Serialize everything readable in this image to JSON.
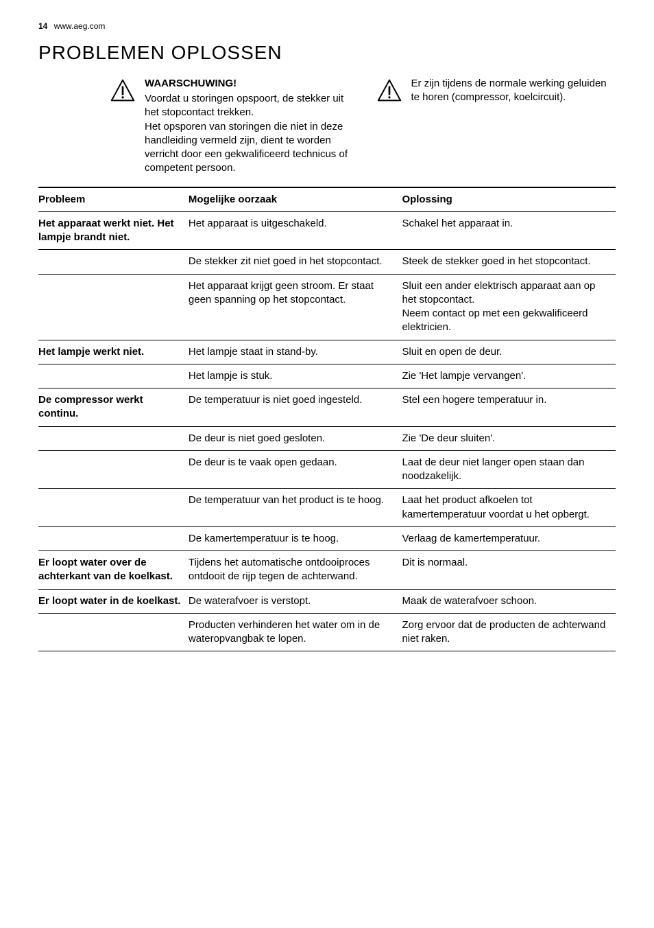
{
  "header": {
    "page_number": "14",
    "site": "www.aeg.com"
  },
  "section_title": "PROBLEMEN OPLOSSEN",
  "warning": {
    "heading": "WAARSCHUWING!",
    "body": "Voordat u storingen opspoort, de stekker uit het stopcontact trekken.\nHet opsporen van storingen die niet in deze handleiding vermeld zijn, dient te worden verricht door een gekwalificeerd technicus of competent persoon."
  },
  "note": {
    "body": "Er zijn tijdens de normale werking geluiden te horen (compressor, koelcircuit)."
  },
  "table": {
    "columns": [
      "Probleem",
      "Mogelijke oorzaak",
      "Oplossing"
    ],
    "rows": [
      {
        "problem": "Het apparaat werkt niet. Het lampje brandt niet.",
        "cause": "Het apparaat is uitgeschakeld.",
        "solution": "Schakel het apparaat in."
      },
      {
        "problem": "",
        "cause": "De stekker zit niet goed in het stopcontact.",
        "solution": "Steek de stekker goed in het stopcontact."
      },
      {
        "problem": "",
        "cause": "Het apparaat krijgt geen stroom. Er staat geen spanning op het stopcontact.",
        "solution": "Sluit een ander elektrisch apparaat aan op het stopcontact.\nNeem contact op met een gekwalificeerd elektricien."
      },
      {
        "problem": "Het lampje werkt niet.",
        "cause": "Het lampje staat in stand-by.",
        "solution": "Sluit en open de deur."
      },
      {
        "problem": "",
        "cause": "Het lampje is stuk.",
        "solution": "Zie 'Het lampje vervangen'."
      },
      {
        "problem": "De compressor werkt continu.",
        "cause": "De temperatuur is niet goed ingesteld.",
        "solution": "Stel een hogere temperatuur in."
      },
      {
        "problem": "",
        "cause": "De deur is niet goed gesloten.",
        "solution": "Zie 'De deur sluiten'."
      },
      {
        "problem": "",
        "cause": "De deur is te vaak open gedaan.",
        "solution": "Laat de deur niet langer open staan dan noodzakelijk."
      },
      {
        "problem": "",
        "cause": "De temperatuur van het product is te hoog.",
        "solution": "Laat het product afkoelen tot kamertemperatuur voordat u het opbergt."
      },
      {
        "problem": "",
        "cause": "De kamertemperatuur is te hoog.",
        "solution": "Verlaag de kamertemperatuur."
      },
      {
        "problem": "Er loopt water over de achterkant van de koelkast.",
        "cause": "Tijdens het automatische ontdooiproces ontdooit de rijp tegen de achterwand.",
        "solution": "Dit is normaal."
      },
      {
        "problem": "Er loopt water in de koelkast.",
        "cause": "De waterafvoer is verstopt.",
        "solution": "Maak de waterafvoer schoon."
      },
      {
        "problem": "",
        "cause": "Producten verhinderen het water om in de wateropvangbak te lopen.",
        "solution": "Zorg ervoor dat de producten de achterwand niet raken."
      }
    ]
  }
}
